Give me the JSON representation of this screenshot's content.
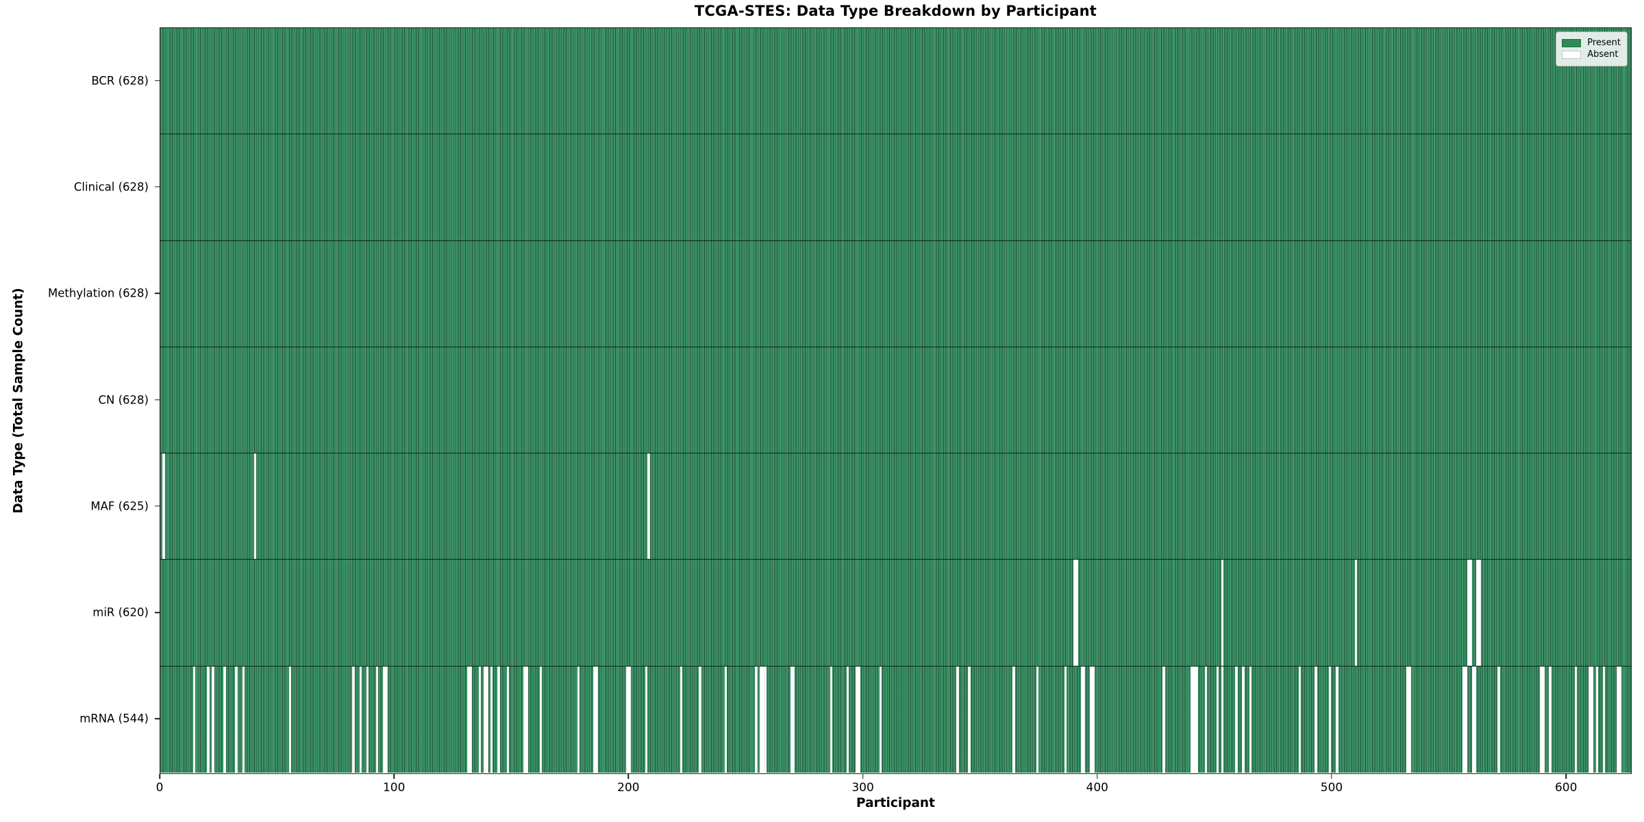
{
  "figure": {
    "title": "TCGA-STES: Data Type Breakdown by Participant",
    "xlabel": "Participant",
    "ylabel": "Data Type (Total Sample Count)"
  },
  "legend": {
    "items": [
      {
        "label": "Present",
        "color": "#2e8b57"
      },
      {
        "label": "Absent",
        "color": "#ffffff"
      }
    ]
  },
  "chart_data": {
    "type": "heatmap",
    "title": "TCGA-STES: Data Type Breakdown by Participant",
    "xlabel": "Participant",
    "ylabel": "Data Type (Total Sample Count)",
    "cohort": "TCGA-STES",
    "n_participants": 628,
    "x_ticks": [
      0,
      100,
      200,
      300,
      400,
      500,
      600
    ],
    "xlim": [
      0,
      628
    ],
    "grid": false,
    "legend_position": "upper right",
    "present_color": "#2e8b57",
    "absent_color": "#ffffff",
    "legend_entries": [
      "Present",
      "Absent"
    ],
    "rows": [
      {
        "data_type": "BCR",
        "label": "BCR (628)",
        "present_count": 628,
        "absent_count": 0,
        "absent_runs": []
      },
      {
        "data_type": "Clinical",
        "label": "Clinical (628)",
        "present_count": 628,
        "absent_count": 0,
        "absent_runs": []
      },
      {
        "data_type": "Methylation",
        "label": "Methylation (628)",
        "present_count": 628,
        "absent_count": 0,
        "absent_runs": []
      },
      {
        "data_type": "CN",
        "label": "CN (628)",
        "present_count": 628,
        "absent_count": 0,
        "absent_runs": []
      },
      {
        "data_type": "MAF",
        "label": "MAF (625)",
        "present_count": 625,
        "absent_count": 3,
        "absent_runs": [
          [
            1,
            1
          ],
          [
            40,
            1
          ],
          [
            208,
            1
          ]
        ]
      },
      {
        "data_type": "miR",
        "label": "miR (620)",
        "present_count": 620,
        "absent_count": 8,
        "absent_runs": [
          [
            390,
            2
          ],
          [
            453,
            1
          ],
          [
            510,
            1
          ],
          [
            558,
            2
          ],
          [
            562,
            2
          ]
        ]
      },
      {
        "data_type": "mRNA",
        "label": "mRNA (544)",
        "present_count": 544,
        "absent_count": 84,
        "absent_runs": [
          [
            14,
            1
          ],
          [
            20,
            1
          ],
          [
            22,
            1
          ],
          [
            27,
            1
          ],
          [
            32,
            1
          ],
          [
            35,
            1
          ],
          [
            55,
            1
          ],
          [
            82,
            1
          ],
          [
            85,
            1
          ],
          [
            88,
            1
          ],
          [
            92,
            1
          ],
          [
            95,
            2
          ],
          [
            131,
            2
          ],
          [
            136,
            1
          ],
          [
            138,
            2
          ],
          [
            141,
            1
          ],
          [
            144,
            1
          ],
          [
            148,
            1
          ],
          [
            155,
            2
          ],
          [
            162,
            1
          ],
          [
            178,
            1
          ],
          [
            185,
            2
          ],
          [
            199,
            2
          ],
          [
            207,
            1
          ],
          [
            222,
            1
          ],
          [
            230,
            1
          ],
          [
            241,
            1
          ],
          [
            254,
            1
          ],
          [
            256,
            2
          ],
          [
            258,
            1
          ],
          [
            269,
            2
          ],
          [
            286,
            1
          ],
          [
            293,
            1
          ],
          [
            297,
            2
          ],
          [
            307,
            1
          ],
          [
            340,
            1
          ],
          [
            345,
            1
          ],
          [
            364,
            1
          ],
          [
            374,
            1
          ],
          [
            386,
            1
          ],
          [
            393,
            2
          ],
          [
            397,
            2
          ],
          [
            428,
            1
          ],
          [
            440,
            3
          ],
          [
            446,
            1
          ],
          [
            451,
            1
          ],
          [
            453,
            1
          ],
          [
            459,
            1
          ],
          [
            462,
            1
          ],
          [
            465,
            1
          ],
          [
            486,
            1
          ],
          [
            493,
            1
          ],
          [
            499,
            1
          ],
          [
            502,
            1
          ],
          [
            532,
            2
          ],
          [
            556,
            2
          ],
          [
            560,
            2
          ],
          [
            571,
            1
          ],
          [
            589,
            2
          ],
          [
            593,
            1
          ],
          [
            604,
            1
          ],
          [
            610,
            2
          ],
          [
            613,
            1
          ],
          [
            616,
            1
          ],
          [
            622,
            2
          ]
        ]
      }
    ]
  }
}
